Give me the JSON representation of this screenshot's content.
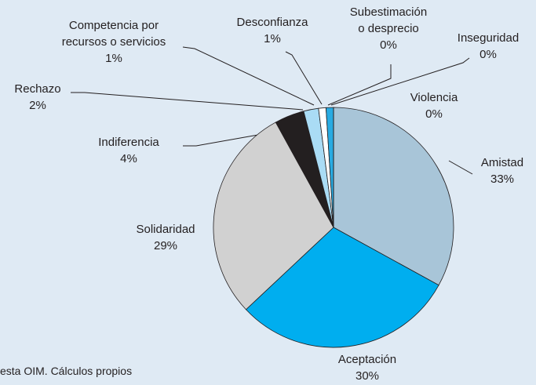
{
  "chart_data": {
    "type": "pie",
    "categories": [
      "Amistad",
      "Aceptación",
      "Solidaridad",
      "Indiferencia",
      "Rechazo",
      "Competencia por recursos o servicios",
      "Desconfianza",
      "Subestimación o desprecio",
      "Inseguridad",
      "Violencia"
    ],
    "values": [
      33,
      30,
      29,
      4,
      2,
      1,
      1,
      0,
      0,
      0
    ],
    "value_labels": [
      "33%",
      "30%",
      "29%",
      "4%",
      "2%",
      "1%",
      "1%",
      "0%",
      "0%",
      "0%"
    ],
    "colors": [
      "#a8c5d8",
      "#00aeef",
      "#d1d1d1",
      "#231f20",
      "#aadcf5",
      "#ffffff",
      "#29abe2",
      "#555555",
      "#888888",
      "#bbbbbb"
    ],
    "source": "esta OIM. Cálculos propios"
  }
}
